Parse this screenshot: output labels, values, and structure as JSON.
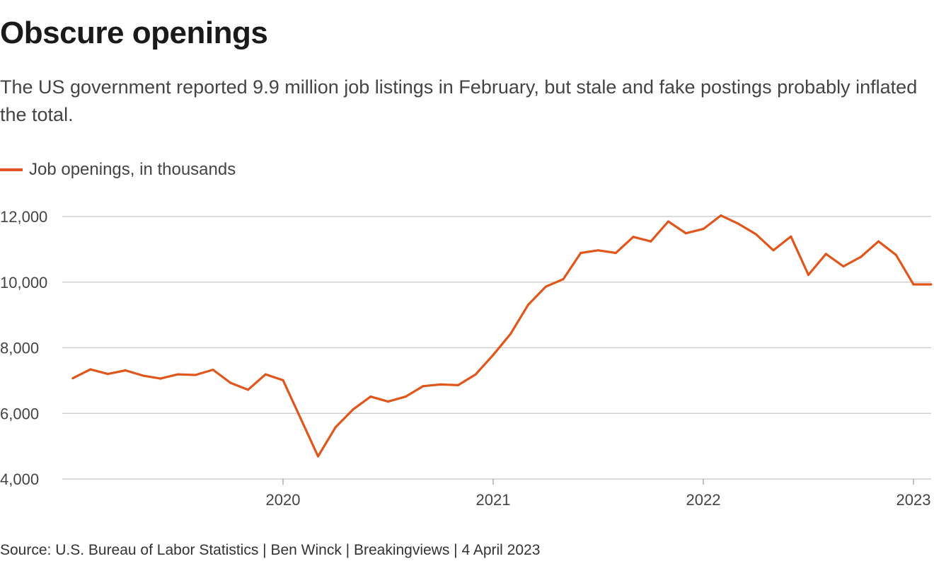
{
  "title": "Obscure openings",
  "subtitle": "The US government reported 9.9 million job listings in February, but stale and fake postings probably inflated the total.",
  "source": "Source: U.S. Bureau of Labor Statistics | Ben Winck | Breakingviews | 4 April 2023",
  "colors": {
    "series": "#e0561b",
    "grid": "#c8c8c8",
    "tick_text": "#444444"
  },
  "chart_data": {
    "type": "line",
    "title": "Obscure openings",
    "subtitle": "The US government reported 9.9 million job listings in February, but stale and fake postings probably inflated the total.",
    "xlabel": "",
    "ylabel": "",
    "grid": "horizontal",
    "legend_position": "top-left",
    "ylim": [
      4000,
      12000
    ],
    "y_ticks": [
      12000,
      10000,
      8000,
      6000,
      4000
    ],
    "y_tick_labels": [
      "12,000",
      "10,000",
      "8,000",
      "6,000",
      "4,000"
    ],
    "xlim": [
      "2019-01",
      "2023-03"
    ],
    "x_ticks": [
      "2020-01",
      "2021-01",
      "2022-01",
      "2023-01"
    ],
    "x_tick_labels": [
      "2020",
      "2021",
      "2022",
      "2023"
    ],
    "series": [
      {
        "name": "Job openings, in thousands",
        "color": "#e0561b",
        "x": [
          "2019-01",
          "2019-02",
          "2019-03",
          "2019-04",
          "2019-05",
          "2019-06",
          "2019-07",
          "2019-08",
          "2019-09",
          "2019-10",
          "2019-11",
          "2019-12",
          "2020-01",
          "2020-02",
          "2020-03",
          "2020-04",
          "2020-05",
          "2020-06",
          "2020-07",
          "2020-08",
          "2020-09",
          "2020-10",
          "2020-11",
          "2020-12",
          "2021-01",
          "2021-02",
          "2021-03",
          "2021-04",
          "2021-05",
          "2021-06",
          "2021-07",
          "2021-08",
          "2021-09",
          "2021-10",
          "2021-11",
          "2021-12",
          "2022-01",
          "2022-02",
          "2022-03",
          "2022-04",
          "2022-05",
          "2022-06",
          "2022-07",
          "2022-08",
          "2022-09",
          "2022-10",
          "2022-11",
          "2022-12",
          "2023-01",
          "2023-02"
        ],
        "values": [
          7070,
          7340,
          7200,
          7310,
          7150,
          7060,
          7190,
          7170,
          7330,
          6930,
          6720,
          7190,
          7010,
          5850,
          4690,
          5580,
          6120,
          6510,
          6360,
          6510,
          6830,
          6880,
          6860,
          7190,
          7780,
          8430,
          9310,
          9860,
          10090,
          10890,
          10970,
          10890,
          11380,
          11240,
          11850,
          11490,
          11620,
          12030,
          11780,
          11460,
          10970,
          11390,
          10220,
          10860,
          10480,
          10770,
          11240,
          10830,
          9930,
          9930
        ]
      }
    ]
  }
}
